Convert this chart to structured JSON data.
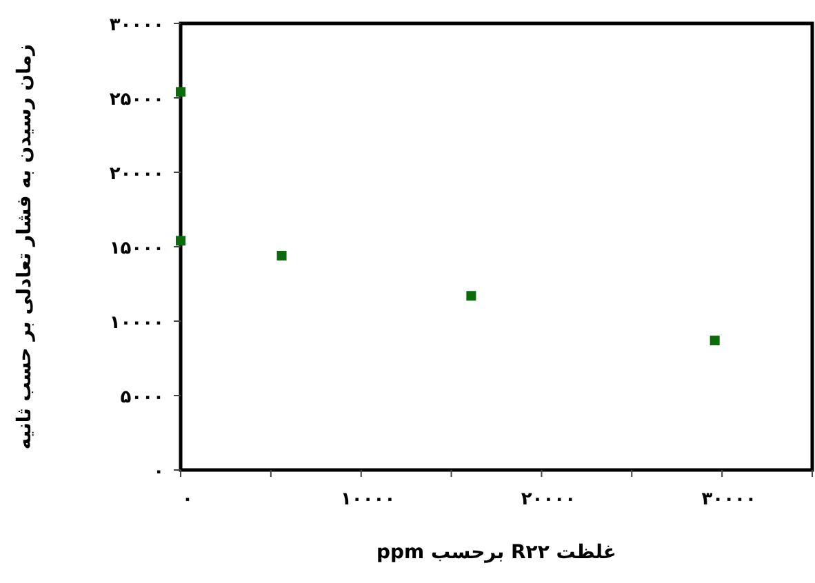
{
  "chart_data": {
    "type": "scatter",
    "xlabel": "غلظت R۲۲ برحسب ppm",
    "ylabel": "زمان رسیدن به فشار تعادلی بر حسب ثانیه",
    "x": [
      0,
      0,
      5600,
      16100,
      29600
    ],
    "series": [
      {
        "color": "#0b6b0b",
        "values": [
          25400,
          15400,
          14400,
          11700,
          8700
        ]
      }
    ],
    "marker": "square",
    "grid": false,
    "xlim": [
      0,
      35000
    ],
    "ylim": [
      0,
      30000
    ],
    "xticks": [
      {
        "value": 0,
        "label": "۰"
      },
      {
        "value": 5000,
        "label": null
      },
      {
        "value": 10000,
        "label": "۱۰۰۰۰"
      },
      {
        "value": 15000,
        "label": null
      },
      {
        "value": 20000,
        "label": "۲۰۰۰۰"
      },
      {
        "value": 25000,
        "label": null
      },
      {
        "value": 30000,
        "label": "۳۰۰۰۰"
      },
      {
        "value": 35000,
        "label": null
      }
    ],
    "yticks": [
      {
        "value": 0,
        "label": "۰"
      },
      {
        "value": 5000,
        "label": "۵۰۰۰"
      },
      {
        "value": 10000,
        "label": "۱۰۰۰۰"
      },
      {
        "value": 15000,
        "label": "۱۵۰۰۰"
      },
      {
        "value": 20000,
        "label": "۲۰۰۰۰"
      },
      {
        "value": 25000,
        "label": "۲۵۰۰۰"
      },
      {
        "value": 30000,
        "label": "۳۰۰۰۰"
      }
    ]
  }
}
